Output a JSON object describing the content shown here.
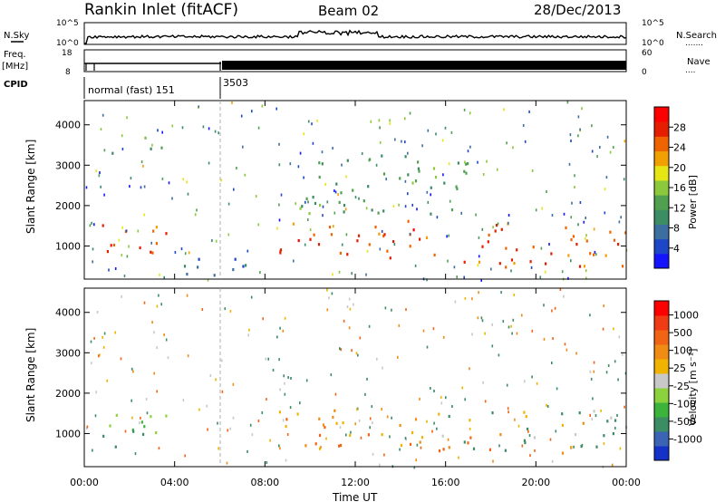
{
  "header": {
    "station": "Rankin Inlet (fitACF)",
    "beam": "Beam 02",
    "date": "28/Dec/2013"
  },
  "panels": {
    "nsky_label": "N.Sky",
    "nsearch_label": "N.Search",
    "nsearch_legend": ".......",
    "freq_label": "Freq.",
    "freq_unit": "[MHz]",
    "nave_label": "Nave",
    "nave_legend": "....",
    "cpid_label": "CPID",
    "cpid_mode1": "normal (fast) 151",
    "cpid_mode2": "3503",
    "nsky_ticks": [
      "10^5",
      "10^0"
    ],
    "nsearch_ticks": [
      "10^5",
      "10^0"
    ],
    "freq_ticks": [
      "18",
      "8"
    ],
    "nave_ticks": [
      "60",
      "0"
    ]
  },
  "chart_data": [
    {
      "type": "heatmap",
      "name": "power",
      "ylabel": "Slant Range [km]",
      "xlabel": "Time UT",
      "x_ticks": [
        "00:00",
        "04:00",
        "08:00",
        "12:00",
        "16:00",
        "20:00",
        "00:00"
      ],
      "x_hours": [
        0,
        4,
        8,
        12,
        16,
        20,
        24
      ],
      "y_ticks": [
        1000,
        2000,
        3000,
        4000
      ],
      "ylim": [
        180,
        4600
      ],
      "colorbar_label": "Power [dB]",
      "colorbar_ticks": [
        4,
        8,
        12,
        16,
        20,
        24,
        28
      ],
      "colorbar_range": [
        0,
        32
      ],
      "colorbar_colors": [
        "#1414ff",
        "#1e46c8",
        "#3c6ea0",
        "#3c8c64",
        "#50a050",
        "#8cc83c",
        "#e6e614",
        "#f0a000",
        "#f06400",
        "#e61e00",
        "#ff0000"
      ],
      "cpid_change_hour": 6.0,
      "echo_regions": [
        {
          "h0": 0.2,
          "h1": 3.6,
          "r0": 700,
          "r1": 1650,
          "level": 27
        },
        {
          "h0": 3.6,
          "h1": 7.2,
          "r0": 250,
          "r1": 900,
          "level": 6
        },
        {
          "h0": 8.6,
          "h1": 15.8,
          "r0": 600,
          "r1": 1650,
          "level": 27
        },
        {
          "h0": 15.8,
          "h1": 24.0,
          "r0": 500,
          "r1": 1600,
          "level": 26
        },
        {
          "h0": 0.4,
          "h1": 4.0,
          "r0": 3300,
          "r1": 3500,
          "level": 12
        },
        {
          "h0": 9.5,
          "h1": 17.0,
          "r0": 1800,
          "r1": 3400,
          "level": 12
        }
      ]
    },
    {
      "type": "heatmap",
      "name": "velocity",
      "ylabel": "Slant Range [km]",
      "xlabel": "Time UT",
      "x_ticks": [
        "00:00",
        "04:00",
        "08:00",
        "12:00",
        "16:00",
        "20:00",
        "00:00"
      ],
      "x_hours": [
        0,
        4,
        8,
        12,
        16,
        20,
        24
      ],
      "y_ticks": [
        1000,
        2000,
        3000,
        4000
      ],
      "ylim": [
        180,
        4600
      ],
      "colorbar_label": "Velocity [m s⁻¹]",
      "colorbar_ticks": [
        1000,
        500,
        100,
        25,
        -25,
        -100,
        -500,
        -1000
      ],
      "colorbar_colors": [
        "#1432c8",
        "#3c64b4",
        "#3c8c64",
        "#3cb43c",
        "#8cd23c",
        "#c8c8c8",
        "#f0b400",
        "#f08c14",
        "#f06414",
        "#f03c14",
        "#ff0000"
      ],
      "echo_regions": [
        {
          "h0": 0.2,
          "h1": 3.6,
          "r0": 700,
          "r1": 1650,
          "level": "green"
        },
        {
          "h0": 8.6,
          "h1": 15.8,
          "r0": 600,
          "r1": 1650,
          "level": "orange"
        },
        {
          "h0": 15.8,
          "h1": 24.0,
          "r0": 500,
          "r1": 1600,
          "level": "mixed"
        }
      ]
    }
  ]
}
